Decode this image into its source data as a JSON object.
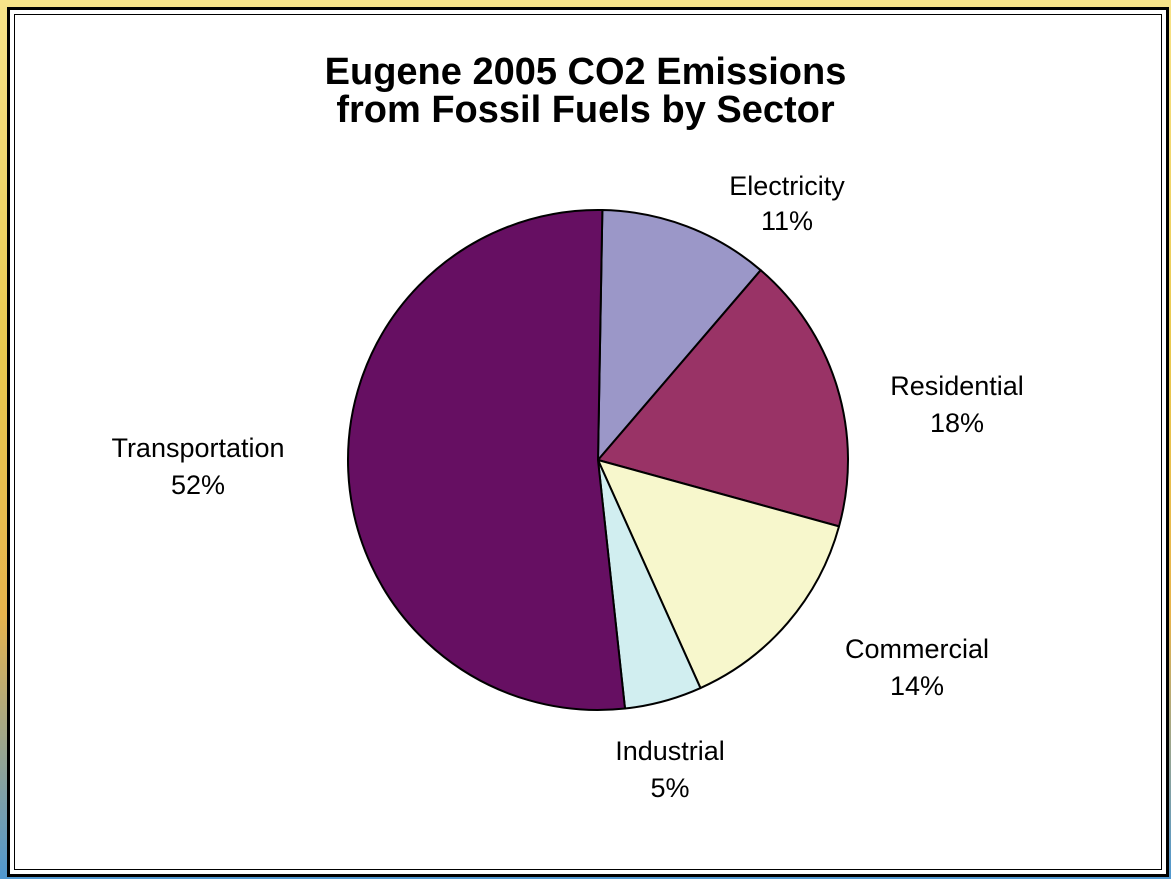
{
  "chart_data": {
    "type": "pie",
    "title_lines": [
      "Eugene 2005 CO2 Emissions",
      "from Fossil Fuels by Sector"
    ],
    "slices": [
      {
        "label": "Electricity",
        "value": 11,
        "value_label": "11%",
        "color": "#9b97c8"
      },
      {
        "label": "Residential",
        "value": 18,
        "value_label": "18%",
        "color": "#993366"
      },
      {
        "label": "Commercial",
        "value": 14,
        "value_label": "14%",
        "color": "#f7f7cc"
      },
      {
        "label": "Industrial",
        "value": 5,
        "value_label": "5%",
        "color": "#d1eef0"
      },
      {
        "label": "Transportation",
        "value": 52,
        "value_label": "52%",
        "color": "#660f62"
      }
    ],
    "start_angle_deg": 1,
    "direction": "clockwise",
    "legend": "none"
  }
}
